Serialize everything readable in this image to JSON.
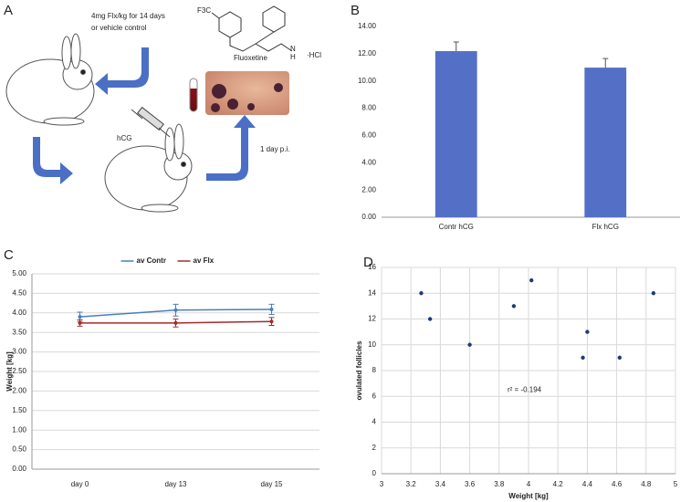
{
  "panels": [
    "A",
    "B",
    "C",
    "D"
  ],
  "diagram": {
    "treatment": [
      "4mg Flx/kg for 14 days",
      "or vehicle control"
    ],
    "compound": "Fluoxetine",
    "formula": {
      "group": "F3C",
      "amine": "N",
      "hydrogen": "H",
      "salt": "·HCl"
    },
    "injection": "hCG",
    "timing": "1 day p.i."
  },
  "chart_data": [
    {
      "type": "bar",
      "categories": [
        "Contr hCG",
        "Flx hCG"
      ],
      "values": [
        12.19,
        10.98
      ],
      "errors": [
        0.67,
        0.67
      ],
      "color": "#5470c6",
      "ylim": [
        0,
        14
      ],
      "yticks": [
        {
          "value": 0,
          "label": "0.00"
        },
        {
          "value": 2,
          "label": "2.00"
        },
        {
          "value": 4,
          "label": "4.00"
        },
        {
          "value": 6,
          "label": "6.00"
        },
        {
          "value": 8,
          "label": "8.00"
        },
        {
          "value": 10,
          "label": "10.00"
        },
        {
          "value": 12,
          "label": "12.00"
        },
        {
          "value": 14,
          "label": "14.00"
        }
      ],
      "grid": false
    },
    {
      "type": "line",
      "y_label": "Weight [kg]",
      "categories": [
        "day 0",
        "day 13",
        "day 15"
      ],
      "legend": "top",
      "series": [
        {
          "name": "av Contr",
          "color": "#4a7ebb",
          "values": [
            3.9,
            4.07,
            4.09
          ],
          "errors": [
            0.12,
            0.15,
            0.13
          ]
        },
        {
          "name": "av Flx",
          "color": "#a52a2a",
          "values": [
            3.74,
            3.74,
            3.78
          ],
          "errors": [
            0.08,
            0.1,
            0.1
          ]
        }
      ],
      "ylim": [
        0,
        5
      ],
      "yticks": [
        {
          "value": 0,
          "label": "0.00"
        },
        {
          "value": 0.5,
          "label": "0.50"
        },
        {
          "value": 1,
          "label": "1.00"
        },
        {
          "value": 1.5,
          "label": "1.50"
        },
        {
          "value": 2,
          "label": "2.00"
        },
        {
          "value": 2.5,
          "label": "2.50"
        },
        {
          "value": 3,
          "label": "3.00"
        },
        {
          "value": 3.5,
          "label": "3.50"
        },
        {
          "value": 4,
          "label": "4.00"
        },
        {
          "value": 4.5,
          "label": "4.50"
        },
        {
          "value": 5,
          "label": "5.00"
        }
      ],
      "grid": "y"
    },
    {
      "type": "scatter",
      "x_label": "Weight [kg]",
      "y_label": "ovulated follicles",
      "annotation": "r² = -0.194",
      "color": "#1f3a7a",
      "x": [
        3.27,
        3.33,
        3.6,
        3.9,
        4.02,
        4.37,
        4.4,
        4.62,
        4.85
      ],
      "values": [
        14,
        12,
        10,
        13,
        15,
        9,
        11,
        9,
        14
      ],
      "xlim": [
        3,
        5
      ],
      "xticks": [
        3,
        3.2,
        3.4,
        3.6,
        3.8,
        4,
        4.2,
        4.4,
        4.6,
        4.8,
        5
      ],
      "ylim": [
        0,
        16
      ],
      "yticks": [
        0,
        2,
        4,
        6,
        8,
        10,
        12,
        14,
        16
      ],
      "grid": "both"
    }
  ]
}
